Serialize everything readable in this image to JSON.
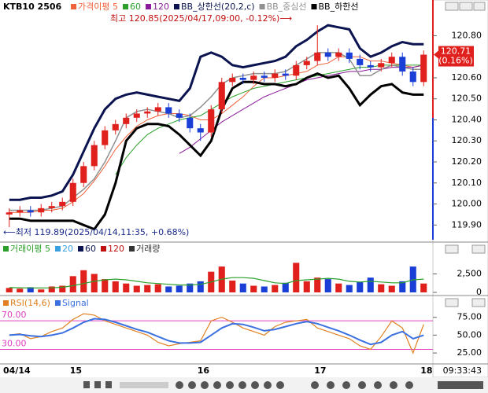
{
  "header": {
    "symbol": "KTB10 2506",
    "time": "09:33:43"
  },
  "chart_data": [
    {
      "type": "candlestick",
      "categories": [
        "04/14",
        null,
        null,
        null,
        null,
        null,
        "15",
        null,
        null,
        null,
        null,
        null,
        null,
        null,
        null,
        null,
        null,
        null,
        "16",
        null,
        null,
        null,
        null,
        null,
        null,
        null,
        null,
        null,
        null,
        "17",
        null,
        null,
        null,
        null,
        null,
        null,
        null,
        null,
        null,
        "18"
      ],
      "open": [
        119.95,
        119.96,
        119.97,
        119.96,
        119.98,
        119.99,
        120.01,
        120.1,
        120.18,
        120.28,
        120.35,
        120.38,
        120.41,
        120.43,
        120.44,
        120.46,
        120.43,
        120.41,
        120.36,
        120.34,
        120.45,
        120.58,
        120.6,
        120.59,
        120.61,
        120.6,
        120.62,
        120.61,
        120.66,
        120.68,
        120.72,
        120.7,
        120.72,
        120.69,
        120.66,
        120.65,
        120.67,
        120.7,
        120.63,
        120.58
      ],
      "high": [
        119.98,
        119.99,
        119.99,
        120.0,
        120.01,
        120.03,
        120.12,
        120.2,
        120.3,
        120.37,
        120.4,
        120.43,
        120.45,
        120.46,
        120.48,
        120.48,
        120.45,
        120.43,
        120.38,
        120.47,
        120.6,
        120.62,
        120.62,
        120.63,
        120.63,
        120.64,
        120.64,
        120.68,
        120.7,
        120.85,
        120.74,
        120.74,
        120.74,
        120.71,
        120.68,
        120.69,
        120.72,
        120.72,
        120.65,
        120.73
      ],
      "low": [
        119.89,
        119.94,
        119.94,
        119.94,
        119.96,
        119.97,
        119.99,
        120.08,
        120.16,
        120.26,
        120.33,
        120.36,
        120.39,
        120.41,
        120.42,
        120.41,
        120.39,
        120.34,
        120.3,
        120.32,
        120.43,
        120.56,
        120.57,
        120.57,
        120.58,
        120.58,
        120.59,
        120.59,
        120.64,
        120.66,
        120.68,
        120.68,
        120.67,
        120.64,
        120.63,
        120.63,
        120.65,
        120.61,
        120.56,
        120.56
      ],
      "close": [
        119.96,
        119.97,
        119.96,
        119.98,
        119.99,
        120.01,
        120.1,
        120.18,
        120.28,
        120.35,
        120.38,
        120.41,
        120.43,
        120.44,
        120.46,
        120.43,
        120.41,
        120.36,
        120.34,
        120.45,
        120.58,
        120.6,
        120.59,
        120.61,
        120.6,
        120.62,
        120.61,
        120.66,
        120.68,
        120.72,
        120.7,
        120.72,
        120.69,
        120.66,
        120.65,
        120.67,
        120.7,
        120.63,
        120.58,
        120.71
      ],
      "up_color": "#e0201c",
      "down_color": "#1a3fd6",
      "series": [
        {
          "name": "가격이평 5",
          "color": "#f0603a",
          "width": 1,
          "values": [
            119.96,
            119.96,
            119.96,
            119.97,
            119.97,
            119.98,
            120.01,
            120.05,
            120.11,
            120.18,
            120.26,
            120.32,
            120.37,
            120.4,
            120.42,
            120.43,
            120.43,
            120.42,
            120.4,
            120.4,
            120.43,
            120.47,
            120.51,
            120.56,
            120.6,
            120.6,
            120.61,
            120.62,
            120.63,
            120.66,
            120.67,
            120.7,
            120.7,
            120.7,
            120.68,
            120.68,
            120.67,
            120.66,
            120.65,
            120.66
          ]
        },
        {
          "name": "60",
          "color": "#2aa02a",
          "width": 1,
          "values": [
            null,
            null,
            null,
            null,
            null,
            null,
            null,
            null,
            null,
            null,
            120.14,
            120.22,
            120.28,
            120.33,
            120.36,
            120.38,
            120.4,
            120.41,
            120.42,
            120.45,
            120.48,
            120.51,
            120.53,
            120.55,
            120.56,
            120.57,
            120.58,
            120.59,
            120.6,
            120.61,
            120.62,
            120.63,
            120.64,
            120.65,
            120.65,
            120.66,
            120.66,
            120.66,
            120.66,
            120.66
          ]
        },
        {
          "name": "120",
          "color": "#8a1a9a",
          "width": 1,
          "values": [
            null,
            null,
            null,
            null,
            null,
            null,
            null,
            null,
            null,
            null,
            null,
            null,
            null,
            null,
            null,
            null,
            120.24,
            120.27,
            120.31,
            120.35,
            120.39,
            120.42,
            120.45,
            120.48,
            120.51,
            120.53,
            120.55,
            120.57,
            120.59,
            120.6,
            120.61,
            120.62,
            120.63,
            120.63,
            120.64,
            120.64,
            120.65,
            120.65,
            120.65,
            120.66
          ]
        },
        {
          "name": "BB_상한선(20,2,c)",
          "color": "#0b1450",
          "width": 3,
          "values": [
            120.02,
            120.02,
            120.03,
            120.03,
            120.04,
            120.06,
            120.14,
            120.25,
            120.36,
            120.45,
            120.5,
            120.52,
            120.53,
            120.52,
            120.51,
            120.5,
            120.49,
            120.55,
            120.7,
            120.72,
            120.7,
            120.66,
            120.65,
            120.66,
            120.67,
            120.68,
            120.7,
            120.75,
            120.78,
            120.82,
            120.85,
            120.84,
            120.83,
            120.74,
            120.7,
            120.72,
            120.75,
            120.77,
            120.76,
            120.76
          ]
        },
        {
          "name": "BB_중심선",
          "color": "#909090",
          "width": 1.5,
          "values": [
            119.97,
            119.97,
            119.97,
            119.97,
            119.98,
            119.99,
            120.03,
            120.07,
            120.12,
            120.2,
            120.3,
            120.41,
            120.44,
            120.45,
            120.44,
            120.43,
            120.41,
            120.42,
            120.46,
            120.51,
            120.57,
            120.6,
            120.61,
            120.62,
            120.62,
            120.62,
            120.63,
            120.66,
            120.69,
            120.72,
            120.72,
            120.72,
            120.69,
            120.61,
            120.61,
            120.64,
            120.66,
            120.65,
            120.64,
            120.64
          ]
        },
        {
          "name": "BB_하한선",
          "color": "#000000",
          "width": 3,
          "values": [
            119.93,
            119.93,
            119.92,
            119.92,
            119.92,
            119.92,
            119.92,
            119.9,
            119.88,
            119.95,
            120.1,
            120.3,
            120.36,
            120.38,
            120.38,
            120.37,
            120.33,
            120.28,
            120.23,
            120.3,
            120.45,
            120.55,
            120.58,
            120.58,
            120.57,
            120.57,
            120.56,
            120.57,
            120.6,
            120.62,
            120.6,
            120.61,
            120.55,
            120.47,
            120.52,
            120.56,
            120.57,
            120.53,
            120.52,
            120.52
          ]
        }
      ],
      "ylim": [
        119.83,
        120.94
      ],
      "yticks": [
        {
          "value": 119.9,
          "label": "119.90"
        },
        {
          "value": 120,
          "label": "120.00"
        },
        {
          "value": 120.1,
          "label": "120.10"
        },
        {
          "value": 120.2,
          "label": "120.20"
        },
        {
          "value": 120.3,
          "label": "120.30"
        },
        {
          "value": 120.4,
          "label": "120.40"
        },
        {
          "value": 120.5,
          "label": "120.50"
        },
        {
          "value": 120.6,
          "label": "120.60"
        },
        {
          "value": 120.8,
          "label": "120.80"
        }
      ],
      "max_annotation": "최고 120.85(2025/04/17,09:00, -0.12%)⟶",
      "min_annotation": "⟵최저 119.89(2025/04/14,11:35, +0.68%)",
      "last_label": "120.71",
      "last_change": "(0.16%)"
    },
    {
      "type": "bar",
      "legend_labels": [
        "거래이평 5",
        "20",
        "60",
        "120",
        "거래량"
      ],
      "values": [
        600,
        500,
        700,
        400,
        800,
        900,
        2200,
        3000,
        2500,
        1800,
        1500,
        1200,
        900,
        1000,
        1100,
        800,
        900,
        1200,
        1500,
        2800,
        3500,
        1600,
        1200,
        900,
        800,
        1000,
        1300,
        4000,
        1500,
        2000,
        1800,
        1200,
        1000,
        1400,
        2000,
        1100,
        900,
        1500,
        3500,
        1200
      ],
      "series": [
        {
          "name": "5",
          "color": "#2aa02a",
          "values": [
            650,
            630,
            610,
            600,
            620,
            700,
            900,
            1200,
            1500,
            1700,
            1800,
            1700,
            1500,
            1300,
            1200,
            1100,
            1000,
            1000,
            1100,
            1400,
            1800,
            2000,
            2000,
            1900,
            1600,
            1300,
            1200,
            1600,
            1700,
            1800,
            1900,
            1800,
            1500,
            1400,
            1500,
            1400,
            1300,
            1300,
            1700,
            1800
          ]
        }
      ],
      "ylim": [
        0,
        5000
      ],
      "yticks": [
        0,
        {
          "value": 2500,
          "label": "2,500"
        }
      ]
    },
    {
      "type": "line",
      "series": [
        {
          "name": "RSI(14,6)",
          "color": "#e08020",
          "values": [
            50,
            52,
            45,
            48,
            55,
            60,
            72,
            80,
            78,
            70,
            65,
            60,
            55,
            50,
            40,
            35,
            38,
            40,
            42,
            70,
            75,
            68,
            60,
            55,
            50,
            62,
            68,
            70,
            72,
            60,
            55,
            50,
            45,
            35,
            30,
            48,
            70,
            60,
            25,
            65
          ]
        },
        {
          "name": "Signal",
          "color": "#3a70e0",
          "values": [
            50,
            51,
            49,
            48,
            50,
            53,
            60,
            68,
            73,
            72,
            68,
            63,
            58,
            54,
            48,
            42,
            39,
            39,
            40,
            50,
            60,
            66,
            65,
            61,
            56,
            58,
            62,
            66,
            69,
            66,
            61,
            56,
            50,
            43,
            37,
            40,
            50,
            55,
            45,
            50
          ]
        }
      ],
      "levels": [
        {
          "value": 70,
          "label": "70.00"
        },
        {
          "value": 30,
          "label": "30.00"
        }
      ],
      "level_color": "#e040c0",
      "ylim": [
        13,
        101
      ],
      "yticks": [
        {
          "value": 25,
          "label": "25.00"
        },
        {
          "value": 50,
          "label": "50.00"
        },
        {
          "value": 75,
          "label": "75.00"
        }
      ]
    }
  ]
}
